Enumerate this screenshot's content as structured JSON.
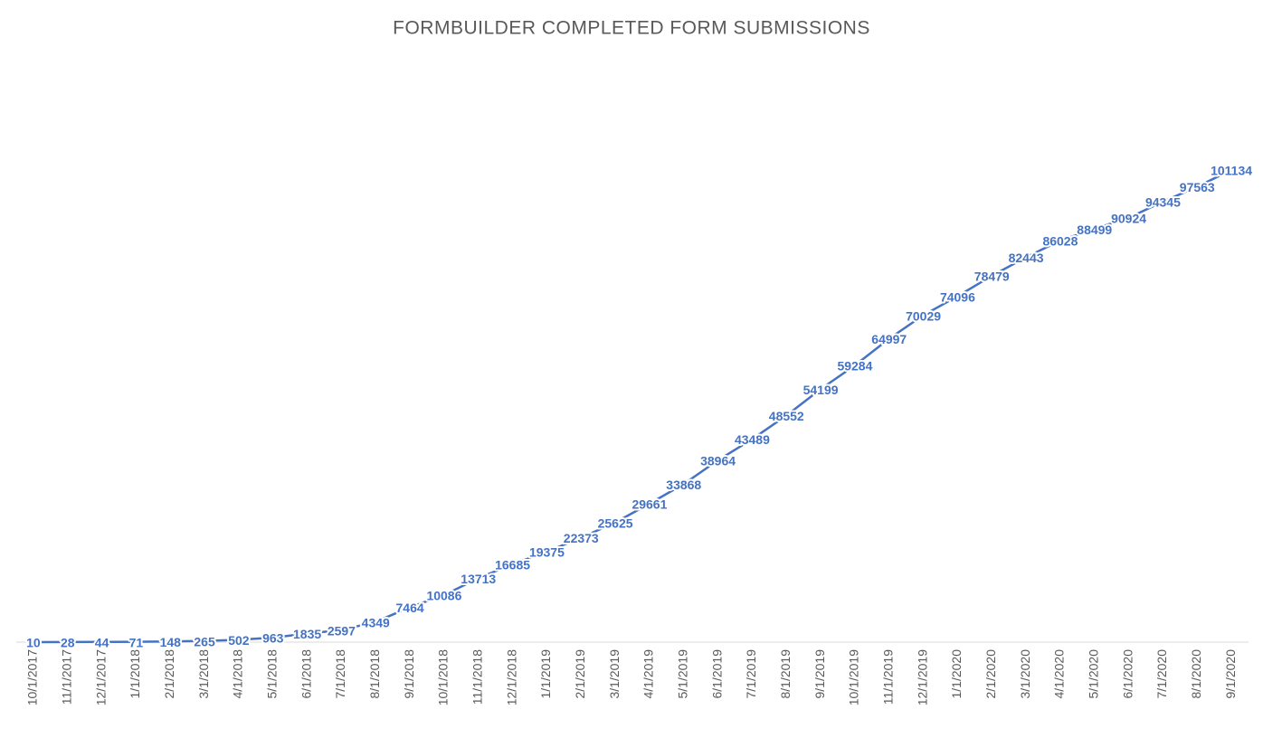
{
  "chart_data": {
    "type": "line",
    "title": "FORMBUILDER COMPLETED FORM SUBMISSIONS",
    "categories": [
      "10/1/2017",
      "11/1/2017",
      "12/1/2017",
      "1/1/2018",
      "2/1/2018",
      "3/1/2018",
      "4/1/2018",
      "5/1/2018",
      "6/1/2018",
      "7/1/2018",
      "8/1/2018",
      "9/1/2018",
      "10/1/2018",
      "11/1/2018",
      "12/1/2018",
      "1/1/2019",
      "2/1/2019",
      "3/1/2019",
      "4/1/2019",
      "5/1/2019",
      "6/1/2019",
      "7/1/2019",
      "8/1/2019",
      "9/1/2019",
      "10/1/2019",
      "11/1/2019",
      "12/1/2019",
      "1/1/2020",
      "2/1/2020",
      "3/1/2020",
      "4/1/2020",
      "5/1/2020",
      "6/1/2020",
      "7/1/2020",
      "8/1/2020",
      "9/1/2020"
    ],
    "values": [
      10,
      28,
      44,
      71,
      148,
      265,
      502,
      963,
      1835,
      2597,
      4349,
      7464,
      10086,
      13713,
      16685,
      19375,
      22373,
      25625,
      29661,
      33868,
      38964,
      43489,
      48552,
      54199,
      59284,
      64997,
      70029,
      74096,
      78479,
      82443,
      86028,
      88499,
      90924,
      94345,
      97563,
      101134
    ],
    "color": "#4472c4"
  }
}
